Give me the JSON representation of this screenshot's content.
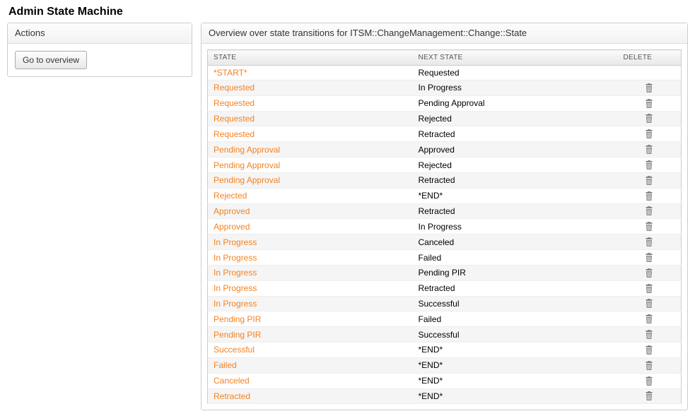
{
  "page": {
    "title": "Admin State Machine"
  },
  "sidebar": {
    "header": "Actions",
    "overview_button_label": "Go to overview"
  },
  "main": {
    "header": "Overview over state transitions for ITSM::ChangeManagement::Change::State",
    "table": {
      "columns": {
        "state": "STATE",
        "next_state": "NEXT STATE",
        "delete": "DELETE"
      },
      "link_color": "#f58220",
      "rows": [
        {
          "state": "*START*",
          "next": "Requested",
          "deletable": false
        },
        {
          "state": "Requested",
          "next": "In Progress",
          "deletable": true
        },
        {
          "state": "Requested",
          "next": "Pending Approval",
          "deletable": true
        },
        {
          "state": "Requested",
          "next": "Rejected",
          "deletable": true
        },
        {
          "state": "Requested",
          "next": "Retracted",
          "deletable": true
        },
        {
          "state": "Pending Approval",
          "next": "Approved",
          "deletable": true
        },
        {
          "state": "Pending Approval",
          "next": "Rejected",
          "deletable": true
        },
        {
          "state": "Pending Approval",
          "next": "Retracted",
          "deletable": true
        },
        {
          "state": "Rejected",
          "next": "*END*",
          "deletable": true
        },
        {
          "state": "Approved",
          "next": "Retracted",
          "deletable": true
        },
        {
          "state": "Approved",
          "next": "In Progress",
          "deletable": true
        },
        {
          "state": "In Progress",
          "next": "Canceled",
          "deletable": true
        },
        {
          "state": "In Progress",
          "next": "Failed",
          "deletable": true
        },
        {
          "state": "In Progress",
          "next": "Pending PIR",
          "deletable": true
        },
        {
          "state": "In Progress",
          "next": "Retracted",
          "deletable": true
        },
        {
          "state": "In Progress",
          "next": "Successful",
          "deletable": true
        },
        {
          "state": "Pending PIR",
          "next": "Failed",
          "deletable": true
        },
        {
          "state": "Pending PIR",
          "next": "Successful",
          "deletable": true
        },
        {
          "state": "Successful",
          "next": "*END*",
          "deletable": true
        },
        {
          "state": "Failed",
          "next": "*END*",
          "deletable": true
        },
        {
          "state": "Canceled",
          "next": "*END*",
          "deletable": true
        },
        {
          "state": "Retracted",
          "next": "*END*",
          "deletable": true
        }
      ]
    }
  }
}
